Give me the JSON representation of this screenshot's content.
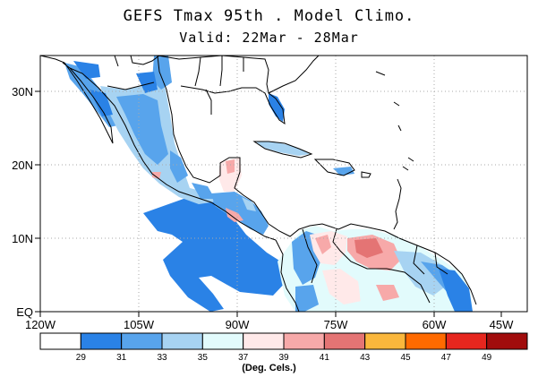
{
  "title": "GEFS Tmax 95th . Model Climo.",
  "subtitle": "Valid: 22Mar - 28Mar",
  "units": "(Deg. Cels.)",
  "lat_labels": [
    "30N",
    "20N",
    "10N",
    "EQ"
  ],
  "lon_labels": [
    "120W",
    "105W",
    "90W",
    "75W",
    "60W",
    "45W"
  ],
  "colorbar": {
    "colors": [
      "#ffffff",
      "#2a82e6",
      "#58a4ec",
      "#a7d3f2",
      "#e2fbfc",
      "#ffe9e9",
      "#f7a9a9",
      "#e47474",
      "#fab73c",
      "#ff6a00",
      "#e6261e",
      "#a10c0c"
    ],
    "labels": [
      "29",
      "31",
      "33",
      "35",
      "37",
      "39",
      "41",
      "43",
      "45",
      "47",
      "49"
    ]
  },
  "colors": {
    "ocean": "#ffffff",
    "land": "#ffffff",
    "grid": "#aaaaaa",
    "coast": "#000000"
  }
}
